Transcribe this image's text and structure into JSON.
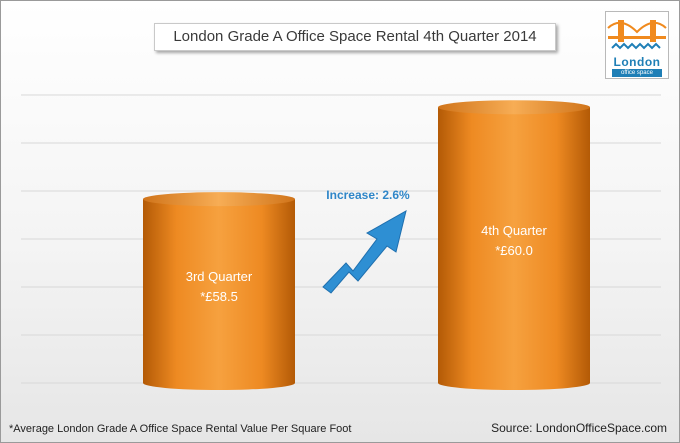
{
  "chart_data": {
    "type": "bar",
    "title": "London Grade A Office Space Rental 4th Quarter 2014",
    "categories": [
      "3rd Quarter",
      "4th Quarter"
    ],
    "values": [
      58.5,
      60.0
    ],
    "value_labels": [
      "*£58.5",
      "*£60.0"
    ],
    "ylim": [
      55.5,
      60.2
    ],
    "grid": true,
    "annotation": "Increase: 2.6%"
  },
  "logo": {
    "word": "London",
    "tagline": "office space"
  },
  "footnote": "*Average London Grade A Office Space Rental Value Per Square Foot",
  "source": "Source: LondonOfficeSpace.com",
  "colors": {
    "bar": "#f08a1e",
    "bar_dark": "#b35a06",
    "arrow": "#2e8fd3",
    "grid": "#d8d8d8"
  }
}
